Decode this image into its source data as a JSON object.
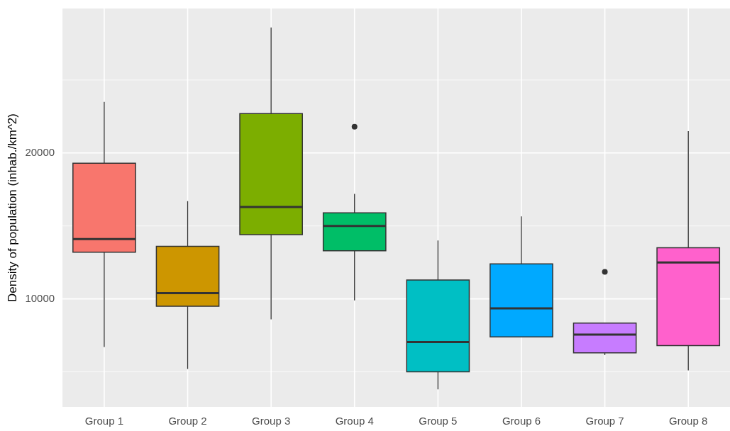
{
  "chart_data": {
    "type": "box",
    "ylabel": "Density of population (inhab./km^2)",
    "categories": [
      "Group 1",
      "Group 2",
      "Group 3",
      "Group 4",
      "Group 5",
      "Group 6",
      "Group 7",
      "Group 8"
    ],
    "colors": [
      "#f8766d",
      "#cd9600",
      "#7cae00",
      "#00be67",
      "#00bfc4",
      "#00a9ff",
      "#c77cff",
      "#ff61cc"
    ],
    "boxes": [
      {
        "low": 6700,
        "q1": 13200,
        "median": 14100,
        "q3": 19300,
        "high": 23500
      },
      {
        "low": 5200,
        "q1": 9500,
        "median": 10400,
        "q3": 13600,
        "high": 16700
      },
      {
        "low": 8600,
        "q1": 14400,
        "median": 16300,
        "q3": 22700,
        "high": 28600
      },
      {
        "low": 9900,
        "q1": 13300,
        "median": 15000,
        "q3": 15900,
        "high": 17200,
        "outliers": [
          21800
        ]
      },
      {
        "low": 3800,
        "q1": 5000,
        "median": 7050,
        "q3": 11300,
        "high": 14000
      },
      {
        "low": 7400,
        "q1": 7400,
        "median": 9350,
        "q3": 12400,
        "high": 15650
      },
      {
        "low": 6150,
        "q1": 6300,
        "median": 7550,
        "q3": 8350,
        "high": 8350,
        "outliers": [
          11850
        ]
      },
      {
        "low": 5100,
        "q1": 6800,
        "median": 12500,
        "q3": 13500,
        "high": 21500
      }
    ],
    "ylim": [
      2600,
      29900
    ],
    "yticks": [
      {
        "value": 5000,
        "label": null
      },
      10000,
      {
        "value": 15000,
        "label": null
      },
      20000,
      {
        "value": 25000,
        "label": null
      }
    ],
    "grid": true
  }
}
